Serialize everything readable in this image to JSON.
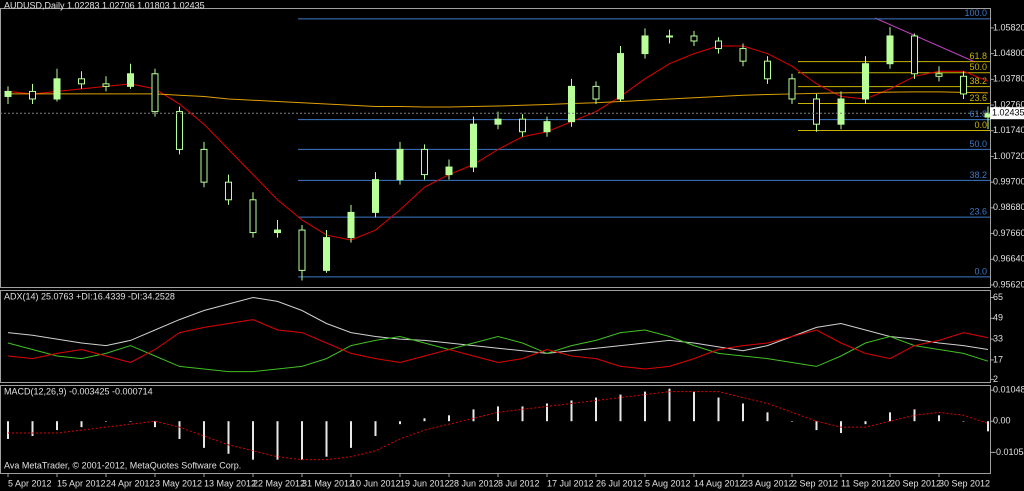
{
  "chart_data": [
    {
      "type": "candlestick",
      "title": "AUDUSD,Daily  1.02283 1.02706 1.01803 1.02435",
      "color": "#b8ff98",
      "open": [
        1.031,
        1.033,
        1.03,
        1.038,
        1.036,
        1.035,
        1.04,
        1.025,
        1.01,
        0.997,
        0.99,
        0.977,
        0.978,
        0.962,
        0.975,
        0.985,
        0.998,
        1.01,
        1.0,
        1.003,
        1.02,
        1.022,
        1.017,
        1.021,
        1.035,
        1.03,
        1.048,
        1.055,
        1.055,
        1.053,
        1.05,
        1.045,
        1.038,
        1.03,
        1.02,
        1.03,
        1.044,
        1.055,
        1.04,
        1.039,
        1.02283
      ],
      "high": [
        1.035,
        1.036,
        1.042,
        1.041,
        1.039,
        1.044,
        1.042,
        1.027,
        1.013,
        1.0,
        0.993,
        0.982,
        0.98,
        0.978,
        0.988,
        1.001,
        1.013,
        1.012,
        1.006,
        1.023,
        1.025,
        1.024,
        1.023,
        1.038,
        1.037,
        1.051,
        1.058,
        1.0575,
        1.057,
        1.0545,
        1.052,
        1.047,
        1.04,
        1.032,
        1.033,
        1.047,
        1.0585,
        1.056,
        1.043,
        1.041,
        1.02706
      ],
      "low": [
        1.028,
        1.028,
        1.029,
        1.034,
        1.033,
        1.034,
        1.023,
        1.008,
        0.995,
        0.988,
        0.975,
        0.975,
        0.958,
        0.961,
        0.973,
        0.983,
        0.996,
        0.998,
        0.998,
        1.001,
        1.018,
        1.015,
        1.015,
        1.019,
        1.028,
        1.029,
        1.046,
        1.052,
        1.051,
        1.048,
        1.043,
        1.036,
        1.028,
        1.017,
        1.018,
        1.028,
        1.042,
        1.038,
        1.037,
        1.03,
        1.01803
      ],
      "close": [
        1.033,
        1.03,
        1.038,
        1.036,
        1.035,
        1.04,
        1.025,
        1.01,
        0.997,
        0.99,
        0.977,
        0.978,
        0.962,
        0.975,
        0.985,
        0.998,
        1.01,
        1.0,
        1.003,
        1.02,
        1.022,
        1.017,
        1.021,
        1.035,
        1.03,
        1.048,
        1.055,
        1.055,
        1.053,
        1.05,
        1.045,
        1.038,
        1.03,
        1.02,
        1.03,
        1.044,
        1.055,
        1.04,
        1.039,
        1.032,
        1.02435
      ],
      "last_price_label": "1.02435",
      "overlays": [
        {
          "color": "#e00000",
          "values": [
            1.033,
            1.032,
            1.033,
            1.034,
            1.035,
            1.036,
            1.034,
            1.028,
            1.02,
            1.01,
            1.0,
            0.99,
            0.982,
            0.976,
            0.974,
            0.978,
            0.986,
            0.995,
            1.0,
            1.004,
            1.01,
            1.015,
            1.017,
            1.021,
            1.025,
            1.031,
            1.038,
            1.044,
            1.048,
            1.051,
            1.051,
            1.048,
            1.043,
            1.036,
            1.031,
            1.03,
            1.034,
            1.039,
            1.041,
            1.041,
            1.037
          ]
        },
        {
          "color": "#e0a000",
          "values": [
            1.032,
            1.032,
            1.032,
            1.032,
            1.032,
            1.032,
            1.032,
            1.0315,
            1.031,
            1.03,
            1.0295,
            1.029,
            1.0285,
            1.028,
            1.0275,
            1.027,
            1.027,
            1.0268,
            1.0268,
            1.027,
            1.0272,
            1.0275,
            1.0278,
            1.0282,
            1.0285,
            1.029,
            1.0295,
            1.03,
            1.0305,
            1.031,
            1.0315,
            1.0318,
            1.032,
            1.0322,
            1.0324,
            1.0325,
            1.0327,
            1.0328,
            1.0328,
            1.0326,
            1.0324
          ]
        }
      ],
      "fib_levels": [
        {
          "color": "#3c78c8",
          "levels": [
            {
              "label": "100.0",
              "value": 1.0618
            },
            {
              "label": "61.8",
              "value": 1.0218
            },
            {
              "label": "50.0",
              "value": 1.01
            },
            {
              "label": "38.2",
              "value": 0.9977
            },
            {
              "label": "23.6",
              "value": 0.9831
            },
            {
              "label": "0.0",
              "value": 0.9594
            }
          ]
        },
        {
          "color": "#c8b400",
          "levels": [
            {
              "label": "61.8",
              "value": 1.0448
            },
            {
              "label": "50.0",
              "value": 1.0404
            },
            {
              "label": "38.2",
              "value": 1.0349
            },
            {
              "label": "23.6",
              "value": 1.0282
            },
            {
              "label": "0.0",
              "value": 1.0175
            }
          ]
        }
      ],
      "ylim": [
        0.9554,
        1.0657
      ],
      "yticks": [
        {
          "value": 1.0582,
          "label": "1.05820"
        },
        {
          "value": 1.048,
          "label": "1.04800"
        },
        {
          "value": 1.0378,
          "label": "1.03780"
        },
        {
          "value": 1.0276,
          "label": "1.02760"
        },
        {
          "value": 1.0174,
          "label": "1.01740"
        },
        {
          "value": 1.0072,
          "label": "1.00720"
        },
        {
          "value": 0.997,
          "label": "0.99700"
        },
        {
          "value": 0.9868,
          "label": "0.98680"
        },
        {
          "value": 0.9766,
          "label": "0.97660"
        },
        {
          "value": 0.9664,
          "label": "0.96640"
        },
        {
          "value": 0.9562,
          "label": "0.95620"
        }
      ]
    },
    {
      "type": "line",
      "title": "ADX(14) 25.0763 +DI:16.4339 -DI:34.2528",
      "series": [
        {
          "color": "#d0d0d0",
          "values": [
            38,
            36,
            33,
            30,
            28,
            32,
            40,
            48,
            55,
            60,
            65,
            62,
            55,
            45,
            38,
            35,
            33,
            32,
            30,
            28,
            26,
            24,
            22,
            24,
            26,
            28,
            30,
            32,
            30,
            27,
            24,
            28,
            35,
            42,
            45,
            40,
            35,
            33,
            30,
            28,
            25
          ]
        },
        {
          "color": "#40c020",
          "values": [
            30,
            25,
            20,
            18,
            22,
            28,
            20,
            12,
            10,
            8,
            8,
            10,
            12,
            18,
            28,
            32,
            35,
            30,
            25,
            30,
            35,
            30,
            22,
            28,
            32,
            38,
            40,
            35,
            28,
            22,
            20,
            18,
            15,
            12,
            20,
            30,
            35,
            28,
            25,
            22,
            16
          ]
        },
        {
          "color": "#e00000",
          "values": [
            20,
            18,
            22,
            25,
            20,
            15,
            25,
            38,
            42,
            45,
            48,
            40,
            38,
            30,
            22,
            18,
            15,
            20,
            25,
            20,
            15,
            18,
            25,
            20,
            18,
            12,
            10,
            12,
            18,
            25,
            28,
            30,
            35,
            40,
            30,
            22,
            18,
            28,
            32,
            38,
            34
          ]
        }
      ],
      "ylim": [
        0,
        70
      ],
      "yticks": [
        65,
        49,
        33,
        17,
        2
      ]
    },
    {
      "type": "bar",
      "title": "MACD(12,26,9) -0.003425 -0.000714",
      "categories": [
        "5 Apr 2012",
        null,
        "15 Apr 2012",
        null,
        "24 Apr 2012",
        null,
        "3 May 2012",
        null,
        "13 May 2012",
        null,
        "22 May 2012",
        null,
        "31 May 2012",
        null,
        "10 Jun 2012",
        null,
        "19 Jun 2012",
        null,
        "28 Jun 2012",
        null,
        "8 Jul 2012",
        null,
        "17 Jul 2012",
        null,
        "26 Jul 2012",
        null,
        "5 Aug 2012",
        null,
        "14 Aug 2012",
        null,
        "23 Aug 2012",
        null,
        "2 Sep 2012",
        null,
        "11 Sep 2012",
        null,
        "20 Sep 2012",
        null,
        "30 Sep 2012",
        null,
        null
      ],
      "series": [
        {
          "kind": "bar",
          "color": "#e8e8e8",
          "values": [
            -0.006,
            -0.005,
            -0.003,
            -0.002,
            0.0,
            0.0,
            -0.002,
            -0.006,
            -0.009,
            -0.011,
            -0.013,
            -0.013,
            -0.013,
            -0.012,
            -0.009,
            -0.005,
            -0.001,
            0.001,
            0.002,
            0.004,
            0.005,
            0.005,
            0.006,
            0.007,
            0.008,
            0.009,
            0.01,
            0.011,
            0.01,
            0.008,
            0.006,
            0.003,
            0.0,
            -0.003,
            -0.004,
            -0.001,
            0.003,
            0.004,
            0.002,
            0.0,
            -0.003425
          ]
        },
        {
          "kind": "line",
          "color": "#e00000",
          "values": [
            -0.004,
            -0.004,
            -0.004,
            -0.003,
            -0.002,
            -0.001,
            0.0,
            -0.002,
            -0.005,
            -0.008,
            -0.01,
            -0.012,
            -0.013,
            -0.013,
            -0.012,
            -0.01,
            -0.006,
            -0.003,
            -0.001,
            0.001,
            0.003,
            0.004,
            0.005,
            0.006,
            0.007,
            0.008,
            0.009,
            0.01,
            0.01,
            0.01,
            0.008,
            0.006,
            0.003,
            0.0,
            -0.002,
            -0.002,
            0.0,
            0.002,
            0.003,
            0.002,
            -0.000714
          ]
        }
      ],
      "annotation": "Ava MetaTrader, © 2001-2012, MetaQuotes Software Corp.",
      "ylim": [
        -0.0175,
        0.0119
      ],
      "yticks": [
        {
          "value": 0.01048,
          "label": "0.01048"
        },
        {
          "value": 0,
          "label": "0.00"
        },
        {
          "value": -0.01054,
          "label": "-0.01054"
        }
      ]
    }
  ]
}
